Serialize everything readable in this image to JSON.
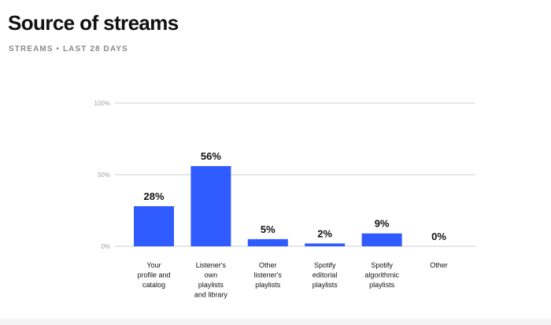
{
  "header": {
    "title": "Source of streams",
    "subtitle": "STREAMS • LAST 28 DAYS"
  },
  "colors": {
    "bar": "#2f5bff",
    "grid": "#cfcfcf",
    "tick_text": "#a3a3a3"
  },
  "chart_data": {
    "type": "bar",
    "title": "Source of streams",
    "subtitle": "STREAMS • LAST 28 DAYS",
    "categories": [
      [
        "Your",
        "profile and",
        "catalog"
      ],
      [
        "Listener's",
        "own",
        "playlists",
        "and library"
      ],
      [
        "Other",
        "listener's",
        "playlists"
      ],
      [
        "Spotify",
        "editorial",
        "playlists"
      ],
      [
        "Spotify",
        "algorithmic",
        "playlists"
      ],
      [
        "Other"
      ]
    ],
    "values": [
      28,
      56,
      5,
      2,
      9,
      0
    ],
    "value_labels": [
      "28%",
      "56%",
      "5%",
      "2%",
      "9%",
      "0%"
    ],
    "yticks": [
      {
        "value": 0,
        "label": "0%"
      },
      {
        "value": 50,
        "label": "50%"
      },
      {
        "value": 100,
        "label": "100%"
      }
    ],
    "ylim": [
      0,
      100
    ],
    "grid": true,
    "legend": "none"
  }
}
